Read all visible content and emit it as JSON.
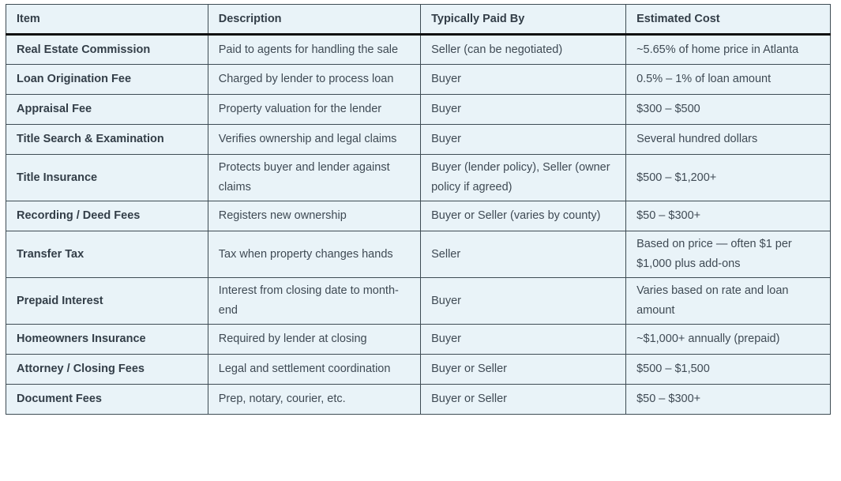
{
  "colors": {
    "page_background": "#ffffff",
    "cell_background": "#e9f3f8",
    "grid_border": "#3e4c54",
    "header_rule": "#101010",
    "body_text": "#3f4a54",
    "bold_text": "#333e48"
  },
  "table": {
    "columns": [
      "Item",
      "Description",
      "Typically Paid By",
      "Estimated Cost"
    ],
    "rows": [
      {
        "item": "Real Estate Commission",
        "description": "Paid to agents for handling the sale",
        "paid_by": "Seller (can be negotiated)",
        "cost": "~5.65% of home price in Atlanta"
      },
      {
        "item": "Loan Origination Fee",
        "description": "Charged by lender to process loan",
        "paid_by": "Buyer",
        "cost": "0.5% – 1% of loan amount"
      },
      {
        "item": "Appraisal Fee",
        "description": "Property valuation for the lender",
        "paid_by": "Buyer",
        "cost": "$300 – $500"
      },
      {
        "item": "Title Search & Examination",
        "description": "Verifies ownership and legal claims",
        "paid_by": "Buyer",
        "cost": "Several hundred dollars"
      },
      {
        "item": "Title Insurance",
        "description": "Protects buyer and lender against claims",
        "paid_by": "Buyer (lender policy), Seller (owner policy if agreed)",
        "cost": "$500 – $1,200+"
      },
      {
        "item": "Recording / Deed Fees",
        "description": "Registers new ownership",
        "paid_by": "Buyer or Seller (varies by county)",
        "cost": "$50 – $300+"
      },
      {
        "item": "Transfer Tax",
        "description": "Tax when property changes hands",
        "paid_by": "Seller",
        "cost": "Based on price — often $1 per $1,000 plus add-ons"
      },
      {
        "item": "Prepaid Interest",
        "description": "Interest from closing date to month-end",
        "paid_by": "Buyer",
        "cost": "Varies based on rate and loan amount"
      },
      {
        "item": "Homeowners Insurance",
        "description": "Required by lender at closing",
        "paid_by": "Buyer",
        "cost": "~$1,000+ annually (prepaid)"
      },
      {
        "item": "Attorney / Closing Fees",
        "description": "Legal and settlement coordination",
        "paid_by": "Buyer or Seller",
        "cost": "$500 – $1,500"
      },
      {
        "item": "Document Fees",
        "description": "Prep, notary, courier, etc.",
        "paid_by": "Buyer or Seller",
        "cost": "$50 – $300+"
      }
    ]
  }
}
